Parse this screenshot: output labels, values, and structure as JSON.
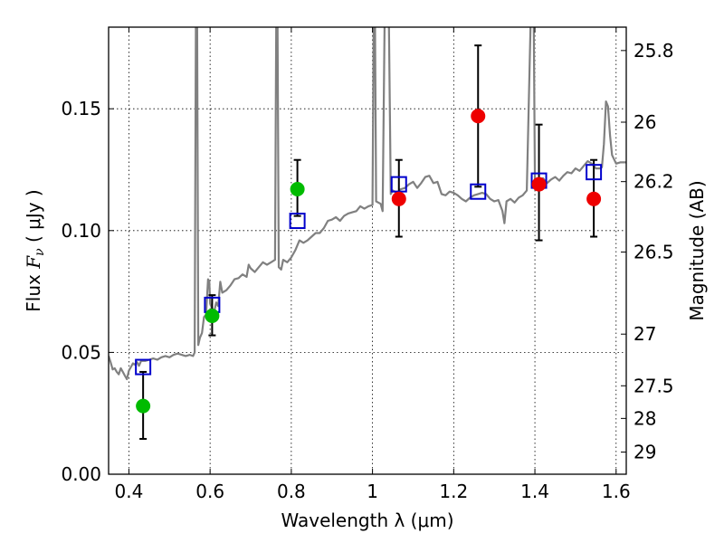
{
  "chart_data": {
    "type": "scatter",
    "xlabel": "Wavelength  λ (μm)",
    "ylabel": "Flux  F_ν  ( μJy )",
    "ylabel_parts": {
      "pre": "Flux  ",
      "var": "F",
      "sub": "ν",
      "post": "  ( μJy )"
    },
    "y2label": "Magnitude (AB)",
    "xlim": [
      0.35,
      1.625
    ],
    "ylim": [
      0.0,
      0.1835
    ],
    "grid": true,
    "xticks": [
      {
        "value": 0.4,
        "label": "0.4"
      },
      {
        "value": 0.6,
        "label": "0.6"
      },
      {
        "value": 0.8,
        "label": "0.8"
      },
      {
        "value": 1.0,
        "label": "1"
      },
      {
        "value": 1.2,
        "label": "1.2"
      },
      {
        "value": 1.4,
        "label": "1.4"
      },
      {
        "value": 1.6,
        "label": "1.6"
      }
    ],
    "yticks": [
      {
        "value": 0.0,
        "label": "0.00"
      },
      {
        "value": 0.05,
        "label": "0.05"
      },
      {
        "value": 0.1,
        "label": "0.10"
      },
      {
        "value": 0.15,
        "label": "0.15"
      }
    ],
    "y2ticks": [
      {
        "flux": 0.1739,
        "label": "25.8"
      },
      {
        "flux": 0.1445,
        "label": "26"
      },
      {
        "flux": 0.1201,
        "label": "26.2"
      },
      {
        "flux": 0.0912,
        "label": "26.5"
      },
      {
        "flux": 0.0575,
        "label": "27"
      },
      {
        "flux": 0.0363,
        "label": "27.5"
      },
      {
        "flux": 0.0229,
        "label": "28"
      },
      {
        "flux": 0.0091,
        "label": "29"
      }
    ],
    "template_spectrum": {
      "color": "#808080",
      "points": [
        [
          0.35,
          0.0485
        ],
        [
          0.355,
          0.046
        ],
        [
          0.36,
          0.043
        ],
        [
          0.365,
          0.0435
        ],
        [
          0.37,
          0.042
        ],
        [
          0.375,
          0.041
        ],
        [
          0.38,
          0.0435
        ],
        [
          0.385,
          0.042
        ],
        [
          0.39,
          0.0405
        ],
        [
          0.395,
          0.039
        ],
        [
          0.4,
          0.0425
        ],
        [
          0.405,
          0.044
        ],
        [
          0.41,
          0.0455
        ],
        [
          0.415,
          0.045
        ],
        [
          0.42,
          0.046
        ],
        [
          0.425,
          0.0445
        ],
        [
          0.43,
          0.0465
        ],
        [
          0.44,
          0.0465
        ],
        [
          0.45,
          0.047
        ],
        [
          0.46,
          0.0475
        ],
        [
          0.47,
          0.047
        ],
        [
          0.48,
          0.048
        ],
        [
          0.49,
          0.0485
        ],
        [
          0.5,
          0.048
        ],
        [
          0.51,
          0.049
        ],
        [
          0.52,
          0.0495
        ],
        [
          0.53,
          0.049
        ],
        [
          0.54,
          0.0485
        ],
        [
          0.55,
          0.049
        ],
        [
          0.558,
          0.0485
        ],
        [
          0.562,
          0.05
        ],
        [
          0.565,
          0.19
        ],
        [
          0.568,
          0.19
        ],
        [
          0.571,
          0.053
        ],
        [
          0.575,
          0.056
        ],
        [
          0.58,
          0.058
        ],
        [
          0.585,
          0.0645
        ],
        [
          0.59,
          0.0655
        ],
        [
          0.595,
          0.08
        ],
        [
          0.598,
          0.079
        ],
        [
          0.6,
          0.07
        ],
        [
          0.605,
          0.068
        ],
        [
          0.61,
          0.0665
        ],
        [
          0.615,
          0.0705
        ],
        [
          0.62,
          0.069
        ],
        [
          0.625,
          0.079
        ],
        [
          0.63,
          0.0745
        ],
        [
          0.64,
          0.0755
        ],
        [
          0.65,
          0.0775
        ],
        [
          0.66,
          0.08
        ],
        [
          0.67,
          0.0805
        ],
        [
          0.68,
          0.082
        ],
        [
          0.69,
          0.081
        ],
        [
          0.695,
          0.086
        ],
        [
          0.7,
          0.0845
        ],
        [
          0.71,
          0.083
        ],
        [
          0.72,
          0.085
        ],
        [
          0.73,
          0.087
        ],
        [
          0.74,
          0.086
        ],
        [
          0.75,
          0.087
        ],
        [
          0.76,
          0.088
        ],
        [
          0.763,
          0.19
        ],
        [
          0.766,
          0.19
        ],
        [
          0.769,
          0.085
        ],
        [
          0.775,
          0.084
        ],
        [
          0.78,
          0.088
        ],
        [
          0.79,
          0.087
        ],
        [
          0.8,
          0.089
        ],
        [
          0.81,
          0.092
        ],
        [
          0.82,
          0.096
        ],
        [
          0.83,
          0.095
        ],
        [
          0.84,
          0.096
        ],
        [
          0.85,
          0.0975
        ],
        [
          0.86,
          0.099
        ],
        [
          0.87,
          0.099
        ],
        [
          0.88,
          0.101
        ],
        [
          0.89,
          0.104
        ],
        [
          0.9,
          0.1045
        ],
        [
          0.91,
          0.1055
        ],
        [
          0.92,
          0.104
        ],
        [
          0.93,
          0.106
        ],
        [
          0.94,
          0.107
        ],
        [
          0.95,
          0.1075
        ],
        [
          0.96,
          0.108
        ],
        [
          0.97,
          0.11
        ],
        [
          0.98,
          0.109
        ],
        [
          0.99,
          0.11
        ],
        [
          1.0,
          0.1105
        ],
        [
          1.003,
          0.19
        ],
        [
          1.006,
          0.19
        ],
        [
          1.009,
          0.112
        ],
        [
          1.02,
          0.111
        ],
        [
          1.025,
          0.108
        ],
        [
          1.03,
          0.19
        ],
        [
          1.04,
          0.19
        ],
        [
          1.045,
          0.115
        ],
        [
          1.05,
          0.1165
        ],
        [
          1.06,
          0.1155
        ],
        [
          1.07,
          0.117
        ],
        [
          1.08,
          0.1175
        ],
        [
          1.09,
          0.119
        ],
        [
          1.1,
          0.12
        ],
        [
          1.11,
          0.1175
        ],
        [
          1.12,
          0.1195
        ],
        [
          1.13,
          0.122
        ],
        [
          1.14,
          0.1225
        ],
        [
          1.15,
          0.1195
        ],
        [
          1.16,
          0.12
        ],
        [
          1.17,
          0.115
        ],
        [
          1.18,
          0.1145
        ],
        [
          1.19,
          0.116
        ],
        [
          1.2,
          0.1155
        ],
        [
          1.21,
          0.1145
        ],
        [
          1.22,
          0.113
        ],
        [
          1.23,
          0.112
        ],
        [
          1.24,
          0.1135
        ],
        [
          1.25,
          0.1145
        ],
        [
          1.26,
          0.115
        ],
        [
          1.27,
          0.1155
        ],
        [
          1.28,
          0.115
        ],
        [
          1.29,
          0.113
        ],
        [
          1.3,
          0.112
        ],
        [
          1.31,
          0.1125
        ],
        [
          1.32,
          0.108
        ],
        [
          1.325,
          0.103
        ],
        [
          1.33,
          0.112
        ],
        [
          1.34,
          0.113
        ],
        [
          1.35,
          0.1115
        ],
        [
          1.36,
          0.1135
        ],
        [
          1.37,
          0.1145
        ],
        [
          1.38,
          0.1165
        ],
        [
          1.39,
          0.19
        ],
        [
          1.397,
          0.19
        ],
        [
          1.4,
          0.1185
        ],
        [
          1.41,
          0.121
        ],
        [
          1.42,
          0.1215
        ],
        [
          1.43,
          0.1195
        ],
        [
          1.44,
          0.121
        ],
        [
          1.45,
          0.122
        ],
        [
          1.46,
          0.1205
        ],
        [
          1.47,
          0.1225
        ],
        [
          1.48,
          0.124
        ],
        [
          1.49,
          0.1235
        ],
        [
          1.5,
          0.1255
        ],
        [
          1.51,
          0.1245
        ],
        [
          1.52,
          0.1265
        ],
        [
          1.53,
          0.1285
        ],
        [
          1.54,
          0.1275
        ],
        [
          1.55,
          0.1255
        ],
        [
          1.56,
          0.1255
        ],
        [
          1.565,
          0.126
        ],
        [
          1.57,
          0.1355
        ],
        [
          1.575,
          0.153
        ],
        [
          1.58,
          0.151
        ],
        [
          1.585,
          0.139
        ],
        [
          1.59,
          0.131
        ],
        [
          1.6,
          0.1275
        ],
        [
          1.61,
          0.128
        ],
        [
          1.625,
          0.128
        ]
      ]
    },
    "model_photometry": {
      "marker": "open-square",
      "color": "#0000cc",
      "points": [
        [
          0.435,
          0.044
        ],
        [
          0.605,
          0.0695
        ],
        [
          0.815,
          0.104
        ],
        [
          1.065,
          0.119
        ],
        [
          1.26,
          0.116
        ],
        [
          1.41,
          0.1205
        ],
        [
          1.545,
          0.124
        ]
      ]
    },
    "observed_photometry": [
      {
        "wavelength": 0.435,
        "flux": 0.028,
        "err_low": 0.0145,
        "err_high": 0.042,
        "color": "#00bb00"
      },
      {
        "wavelength": 0.605,
        "flux": 0.065,
        "err_low": 0.057,
        "err_high": 0.0735,
        "color": "#00bb00"
      },
      {
        "wavelength": 0.815,
        "flux": 0.117,
        "err_low": 0.106,
        "err_high": 0.129,
        "color": "#00bb00"
      },
      {
        "wavelength": 1.065,
        "flux": 0.113,
        "err_low": 0.0975,
        "err_high": 0.129,
        "color": "#ee0000"
      },
      {
        "wavelength": 1.26,
        "flux": 0.147,
        "err_low": 0.118,
        "err_high": 0.176,
        "color": "#ee0000"
      },
      {
        "wavelength": 1.41,
        "flux": 0.119,
        "err_low": 0.096,
        "err_high": 0.1435,
        "color": "#ee0000"
      },
      {
        "wavelength": 1.545,
        "flux": 0.113,
        "err_low": 0.0975,
        "err_high": 0.129,
        "color": "#ee0000"
      }
    ]
  }
}
